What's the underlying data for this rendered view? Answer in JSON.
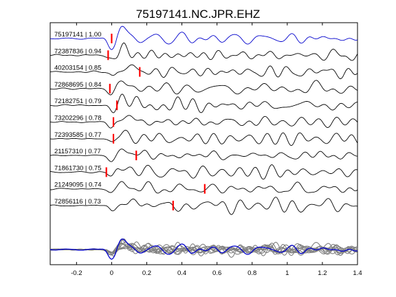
{
  "chart_data": {
    "type": "line",
    "title": "75197141.NC.JPR.EHZ",
    "xlabel": "",
    "ylabel": "",
    "xlim": [
      -0.35,
      1.4
    ],
    "xticks": [
      -0.2,
      0,
      0.2,
      0.4,
      0.6,
      0.8,
      1,
      1.2,
      1.4
    ],
    "xtick_labels": [
      "-0.2",
      "0",
      "0.2",
      "0.4",
      "0.6",
      "0.8",
      "1",
      "1.2",
      "1.4"
    ],
    "grid": false,
    "legend": "none",
    "colors": {
      "reference": "#0000cc",
      "trace": "#000000",
      "pick": "#ff0000",
      "stack": "#808080"
    },
    "series": [
      {
        "label": "75197141 | 1.00",
        "pick_time": 0.0,
        "reference": true
      },
      {
        "label": "72387836 | 0.94",
        "pick_time": -0.02,
        "reference": false
      },
      {
        "label": "40203154 | 0.85",
        "pick_time": 0.16,
        "reference": false
      },
      {
        "label": "72868695 | 0.84",
        "pick_time": -0.01,
        "reference": false
      },
      {
        "label": "72182751 | 0.79",
        "pick_time": 0.03,
        "reference": false
      },
      {
        "label": "73202296 | 0.78",
        "pick_time": 0.01,
        "reference": false
      },
      {
        "label": "72393585 | 0.77",
        "pick_time": 0.01,
        "reference": false
      },
      {
        "label": "21157310 | 0.77",
        "pick_time": 0.14,
        "reference": false
      },
      {
        "label": "71861730 | 0.75",
        "pick_time": -0.03,
        "reference": false
      },
      {
        "label": "21249095 | 0.74",
        "pick_time": 0.53,
        "reference": false
      },
      {
        "label": "72856116 | 0.73",
        "pick_time": 0.35,
        "reference": false
      }
    ],
    "stack_panel": {
      "overlay_count": 11,
      "reference_color": "#0000cc",
      "others_color": "#808080"
    }
  }
}
